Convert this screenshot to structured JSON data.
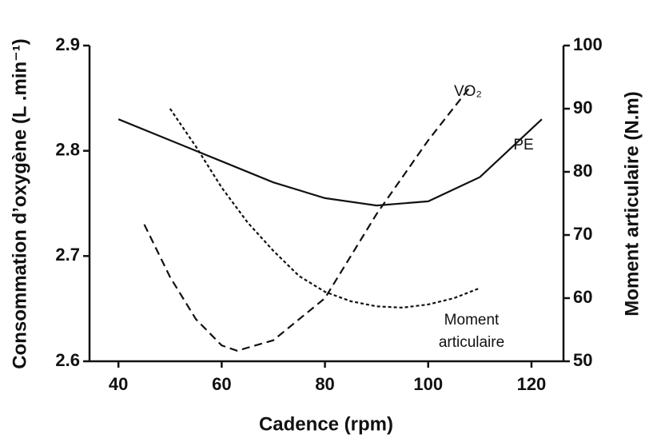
{
  "chart_data": {
    "type": "line",
    "xlabel": "Cadence (rpm)",
    "ylabel": "Consommation d’oxygène (L .min⁻¹)",
    "y2label": "Moment articulaire (N.m)",
    "xlim": [
      34.4,
      126.2
    ],
    "xticks": [
      40,
      60,
      80,
      100,
      120
    ],
    "ylim": [
      2.6,
      2.9
    ],
    "yticks": [
      2.6,
      2.7,
      2.8,
      2.9
    ],
    "y2lim": [
      50,
      100
    ],
    "y2ticks": [
      50,
      60,
      70,
      80,
      90,
      100
    ],
    "series": [
      {
        "name": "VO₂",
        "color": "#111111",
        "dash": "dashed",
        "x": [
          45,
          50,
          55,
          60,
          63,
          70,
          80,
          90,
          100,
          108
        ],
        "values": [
          2.73,
          2.68,
          2.64,
          2.615,
          2.61,
          2.62,
          2.66,
          2.74,
          2.81,
          2.86
        ]
      },
      {
        "name": "PE",
        "color": "#111111",
        "dash": "solid",
        "x": [
          40,
          50,
          60,
          70,
          80,
          90,
          100,
          110,
          122
        ],
        "values": [
          2.83,
          2.81,
          2.79,
          2.77,
          2.755,
          2.748,
          2.752,
          2.775,
          2.83
        ]
      },
      {
        "name": "Moment articulaire",
        "color": "#111111",
        "dash": "dotted",
        "axis": "y2",
        "x": [
          50,
          55,
          60,
          65,
          70,
          75,
          80,
          85,
          90,
          95,
          100,
          105,
          110
        ],
        "values": [
          90,
          84,
          77.5,
          72,
          67.5,
          63.5,
          61,
          59.5,
          58.7,
          58.5,
          59,
          60,
          61.6
        ]
      }
    ]
  }
}
